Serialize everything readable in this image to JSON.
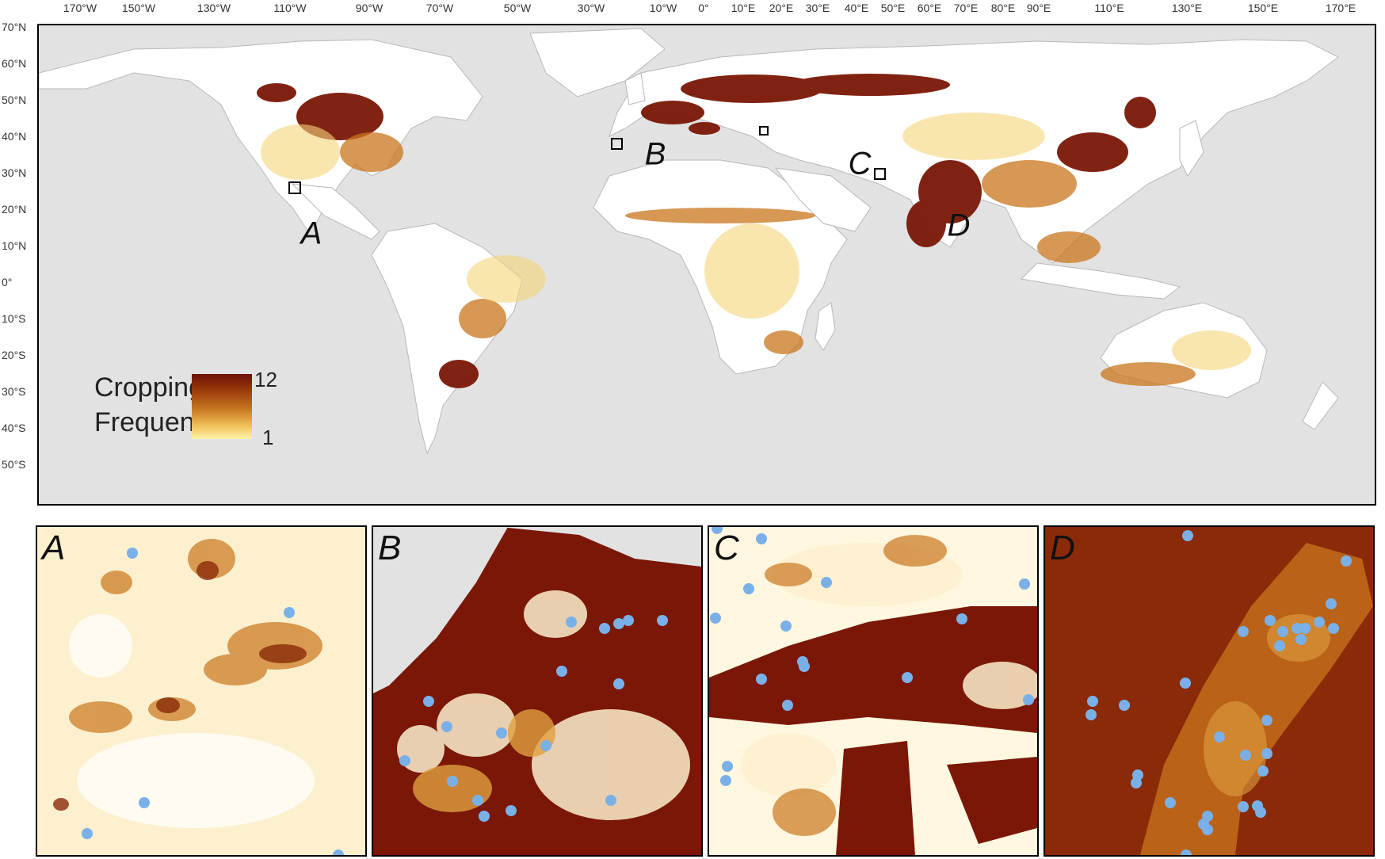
{
  "axes": {
    "longitude_labels": [
      "170°W",
      "150°W",
      "130°W",
      "110°W",
      "90°W",
      "70°W",
      "50°W",
      "30°W",
      "10°W",
      "0°",
      "10°E",
      "20°E",
      "30°E",
      "40°E",
      "50°E",
      "60°E",
      "70°E",
      "80°E",
      "90°E",
      "110°E",
      "130°E",
      "150°E",
      "170°E"
    ],
    "latitude_labels": [
      "70°N",
      "60°N",
      "50°N",
      "40°N",
      "30°N",
      "20°N",
      "10°N",
      "0°",
      "10°S",
      "20°S",
      "30°S",
      "40°S",
      "50°S"
    ]
  },
  "legend": {
    "title_line1": "Cropping",
    "title_line2": "Frequency",
    "max_label": "12",
    "min_label": "1",
    "color_max": "#6a1205",
    "color_min": "#fff2a8"
  },
  "regions": [
    "A",
    "B",
    "C",
    "D"
  ],
  "insets": [
    {
      "label": "A"
    },
    {
      "label": "B"
    },
    {
      "label": "C"
    },
    {
      "label": "D"
    }
  ],
  "colors": {
    "ocean": "#e2e2e2",
    "land": "#ffffff",
    "crop_high": "#7a1706",
    "crop_mid": "#c9761c",
    "crop_low": "#f5d57a",
    "sample_point": "#7ab0e8"
  }
}
